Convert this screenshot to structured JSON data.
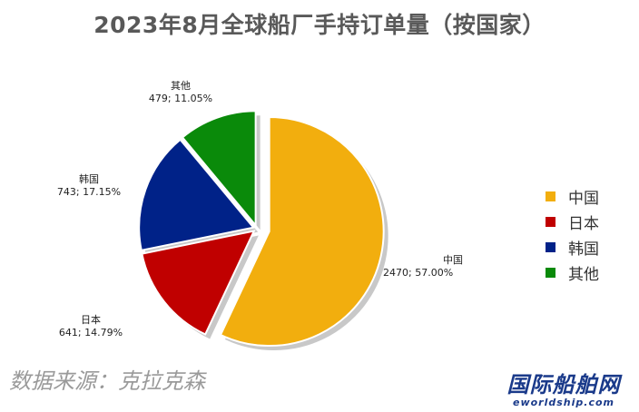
{
  "chart_data": {
    "type": "pie",
    "title": "2023年8月全球船厂手持订单量（按国家）",
    "unit_format": "value; percent",
    "slices": [
      {
        "name": "中国",
        "value": 2470,
        "percent": "57.00%",
        "color": "#F2AE0E",
        "exploded": true
      },
      {
        "name": "日本",
        "value": 641,
        "percent": "14.79%",
        "color": "#C00000",
        "exploded": false
      },
      {
        "name": "韩国",
        "value": 743,
        "percent": "17.15%",
        "color": "#002288",
        "exploded": false
      },
      {
        "name": "其他",
        "value": 479,
        "percent": "11.05%",
        "color": "#0A8A0A",
        "exploded": false
      }
    ],
    "legend": {
      "position": "right",
      "entries": [
        "中国",
        "日本",
        "韩国",
        "其他"
      ]
    }
  },
  "footer": {
    "source": "数据来源：克拉克森",
    "brand_logo": "国际船舶网",
    "brand_url": "eworldship.com"
  }
}
